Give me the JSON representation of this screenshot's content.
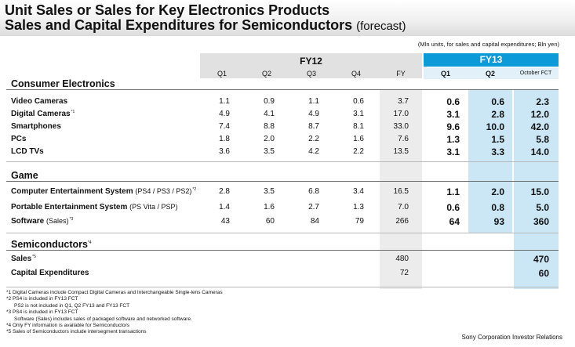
{
  "title": {
    "line1": "Unit Sales or Sales for Key Electronics Products",
    "line2": "Sales and Capital Expenditures for Semiconductors",
    "forecast": "(forecast)"
  },
  "unit_note": "(Mln units, for sales and capital expenditures;  Bln yen)",
  "headers": {
    "fy12": "FY12",
    "fy13": "FY13",
    "columns": [
      "Q1",
      "Q2",
      "Q3",
      "Q4",
      "FY",
      "Q1",
      "Q2",
      "October FCT"
    ]
  },
  "sections": {
    "consumer": "Consumer Electronics",
    "game": "Game",
    "semi": "Semiconductors",
    "semi_note": "*4"
  },
  "rows": [
    {
      "label": "Video Cameras",
      "extra": "",
      "note": "",
      "values": [
        "1.1",
        "0.9",
        "1.1",
        "0.6",
        "3.7",
        "0.6",
        "0.6",
        "2.3"
      ]
    },
    {
      "label": "Digital Cameras",
      "extra": "",
      "note": "*1",
      "values": [
        "4.9",
        "4.1",
        "4.9",
        "3.1",
        "17.0",
        "3.1",
        "2.8",
        "12.0"
      ]
    },
    {
      "label": "Smartphones",
      "extra": "",
      "note": "",
      "values": [
        "7.4",
        "8.8",
        "8.7",
        "8.1",
        "33.0",
        "9.6",
        "10.0",
        "42.0"
      ]
    },
    {
      "label": "PCs",
      "extra": "",
      "note": "",
      "values": [
        "1.8",
        "2.0",
        "2.2",
        "1.6",
        "7.6",
        "1.3",
        "1.5",
        "5.8"
      ]
    },
    {
      "label": "LCD TVs",
      "extra": "",
      "note": "",
      "values": [
        "3.6",
        "3.5",
        "4.2",
        "2.2",
        "13.5",
        "3.1",
        "3.3",
        "14.0"
      ]
    },
    {
      "label": "Computer Entertainment System",
      "extra": "(PS4 / PS3 / PS2)",
      "note": "*2",
      "values": [
        "2.8",
        "3.5",
        "6.8",
        "3.4",
        "16.5",
        "1.1",
        "2.0",
        "15.0"
      ]
    },
    {
      "label": "Portable Entertainment System",
      "extra": "(PS Vita / PSP)",
      "note": "",
      "values": [
        "1.4",
        "1.6",
        "2.7",
        "1.3",
        "7.0",
        "0.6",
        "0.8",
        "5.0"
      ]
    },
    {
      "label": "Software",
      "extra": "(Sales)",
      "note": "*3",
      "values": [
        "43",
        "60",
        "84",
        "79",
        "266",
        "64",
        "93",
        "360"
      ]
    },
    {
      "label": "Sales",
      "extra": "",
      "note": "*5",
      "values": [
        "",
        "",
        "",
        "",
        "480",
        "",
        "",
        "470"
      ]
    },
    {
      "label": "Capital  Expenditures",
      "extra": "",
      "note": "",
      "values": [
        "",
        "",
        "",
        "",
        "72",
        "",
        "",
        "60"
      ]
    }
  ],
  "notes": [
    "*1 Digital Cameras include Compact Digital Cameras and Interchangeable Single-lens Cameras",
    "*2 PS4 is included in FY13 FCT",
    "PS2 is not included in Q1, Q2 FY13 and FY13 FCT",
    "*3 PS4 is included in FY13 FCT",
    "Software (Sales) includes sales of packaged software and networked software.",
    "*4 Only FY information is available for Semiconductors",
    "*5 Sales of Semiconductors include intersegment transactions"
  ],
  "footer": "Sony Corporation  Investor Relations",
  "colors": {
    "fy13_blue": "#0d9ad9",
    "highlight_blue": "#cbe7f6",
    "fy_gray": "#ececec"
  }
}
